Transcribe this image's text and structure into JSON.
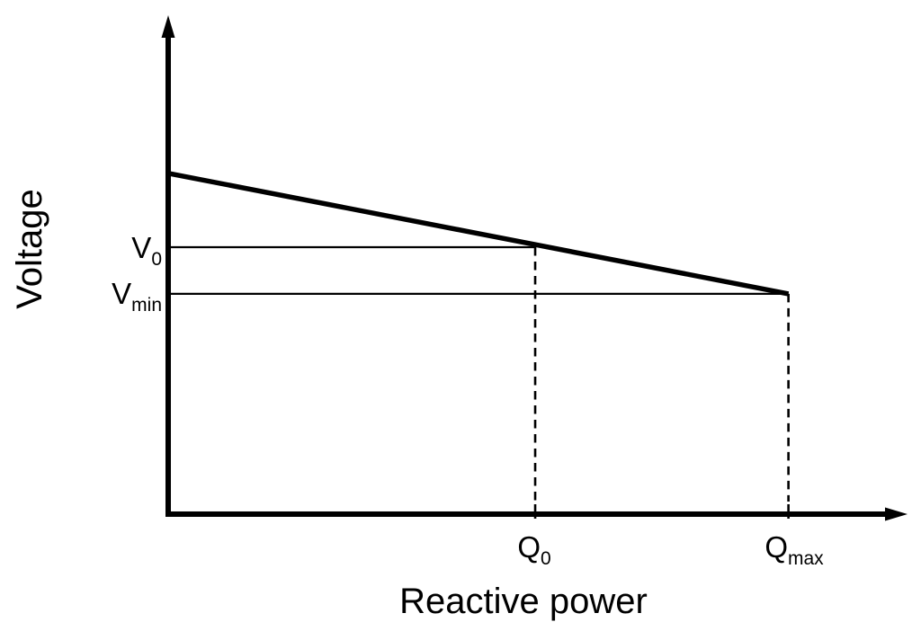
{
  "figure": {
    "y_axis_label": "Voltage",
    "x_axis_label": "Reactive power",
    "labels": {
      "v0": {
        "main": "V",
        "sub": "0"
      },
      "vmin": {
        "main": "V",
        "sub": "min"
      },
      "q0": {
        "main": "Q",
        "sub": "0"
      },
      "qmax": {
        "main": "Q",
        "sub": "max"
      }
    },
    "colors": {
      "ink": "#000000",
      "background": "#ffffff"
    }
  },
  "chart_data": {
    "type": "line",
    "title": "",
    "xlabel": "Reactive power",
    "ylabel": "Voltage",
    "x_unit": "relative (no numeric scale shown)",
    "y_unit": "relative (no numeric scale shown)",
    "xlim": [
      0,
      1
    ],
    "ylim": [
      0,
      1
    ],
    "grid": false,
    "legend": false,
    "x_tick_labels": [
      "Q0",
      "Qmax"
    ],
    "y_tick_labels": [
      "V0",
      "Vmin"
    ],
    "series": [
      {
        "name": "voltage droop line",
        "style": "thick solid",
        "x": [
          0,
          0.841
        ],
        "y": [
          0.687,
          0.444
        ]
      }
    ],
    "key_points": {
      "voltage_at_zero_reactive_power": 0.687,
      "V0": 0.538,
      "Vmin": 0.444,
      "Q0": 0.4976,
      "Qmax": 0.841
    },
    "reference_lines": [
      {
        "label": "V0",
        "type": "horizontal-solid",
        "y": 0.538,
        "x_from": 0,
        "x_to": 0.4976
      },
      {
        "label": "Vmin",
        "type": "horizontal-solid",
        "y": 0.444,
        "x_from": 0,
        "x_to": 0.841
      },
      {
        "label": "Q0",
        "type": "vertical-dashed",
        "x": 0.4976,
        "y_from": 0,
        "y_to": 0.538
      },
      {
        "label": "Qmax",
        "type": "vertical-dashed",
        "x": 0.841,
        "y_from": 0,
        "y_to": 0.444
      }
    ]
  }
}
